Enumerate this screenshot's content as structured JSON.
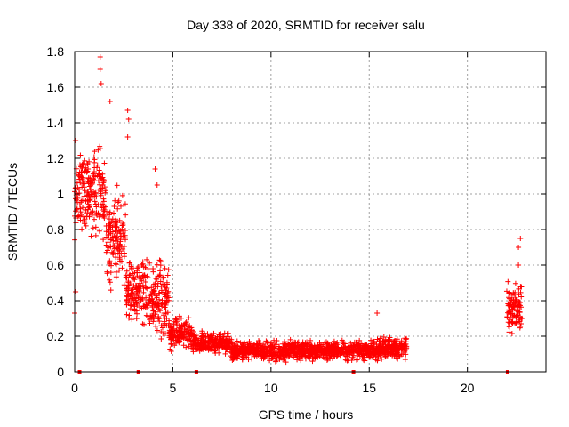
{
  "chart_data": {
    "type": "scatter",
    "title": "Day 338 of 2020, SRMTID for receiver salu",
    "xlabel": "GPS time / hours",
    "ylabel": "SRMTID / TECUs",
    "xlim": [
      0,
      24
    ],
    "ylim": [
      0,
      1.8
    ],
    "xticks": [
      0,
      5,
      10,
      15,
      20
    ],
    "xtick_labels": [
      "0",
      "5",
      "10",
      "15",
      "20"
    ],
    "yticks": [
      0,
      0.2,
      0.4,
      0.6,
      0.8,
      1.0,
      1.2,
      1.4,
      1.6,
      1.8
    ],
    "ytick_labels": [
      "0",
      "0.2",
      "0.4",
      "0.6",
      "0.8",
      "1",
      "1.2",
      "1.4",
      "1.6",
      "1.8"
    ],
    "grid": true,
    "marker_color": "#ff0000",
    "marker": "+",
    "series": [
      {
        "name": "SRMTID",
        "segments": [
          {
            "t_start": 0.0,
            "t_end": 0.6,
            "center": 1.0,
            "spread": 0.3
          },
          {
            "t_start": 0.6,
            "t_end": 1.6,
            "center": 1.0,
            "spread": 0.35
          },
          {
            "t_start": 1.6,
            "t_end": 2.6,
            "center": 0.75,
            "spread": 0.35
          },
          {
            "t_start": 2.6,
            "t_end": 3.6,
            "center": 0.45,
            "spread": 0.25
          },
          {
            "t_start": 3.6,
            "t_end": 4.8,
            "center": 0.4,
            "spread": 0.3
          },
          {
            "t_start": 4.8,
            "t_end": 6.0,
            "center": 0.22,
            "spread": 0.12
          },
          {
            "t_start": 6.0,
            "t_end": 8.0,
            "center": 0.16,
            "spread": 0.08
          },
          {
            "t_start": 8.0,
            "t_end": 15.0,
            "center": 0.12,
            "spread": 0.07
          },
          {
            "t_start": 15.0,
            "t_end": 16.9,
            "center": 0.13,
            "spread": 0.08
          },
          {
            "t_start": 22.0,
            "t_end": 22.8,
            "center": 0.35,
            "spread": 0.2
          }
        ],
        "outliers": [
          {
            "x": 1.3,
            "y": 1.77
          },
          {
            "x": 1.3,
            "y": 1.7
          },
          {
            "x": 1.35,
            "y": 1.62
          },
          {
            "x": 1.8,
            "y": 1.52
          },
          {
            "x": 2.7,
            "y": 1.47
          },
          {
            "x": 2.75,
            "y": 1.42
          },
          {
            "x": 2.7,
            "y": 1.32
          },
          {
            "x": 4.1,
            "y": 1.14
          },
          {
            "x": 4.2,
            "y": 1.05
          },
          {
            "x": 0.05,
            "y": 1.3
          },
          {
            "x": 0.05,
            "y": 0.45
          },
          {
            "x": 0.0,
            "y": 0.33
          },
          {
            "x": 15.4,
            "y": 0.33
          },
          {
            "x": 22.7,
            "y": 0.75
          },
          {
            "x": 22.6,
            "y": 0.7
          },
          {
            "x": 22.6,
            "y": 0.6
          }
        ]
      }
    ],
    "zero_markers_x": [
      0.25,
      3.25,
      6.2,
      14.2,
      22.05
    ]
  }
}
